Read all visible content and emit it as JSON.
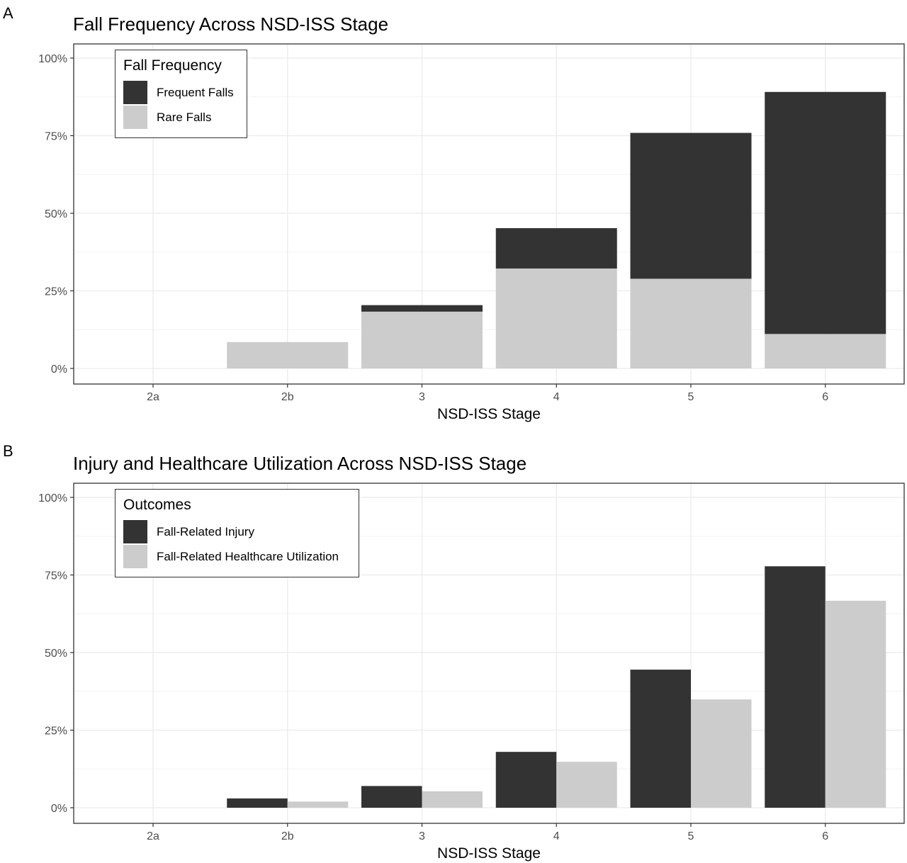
{
  "colors": {
    "dark": "#333333",
    "light": "#cccccc",
    "grid_major": "#ebebeb",
    "grid_minor": "#f3f3f3",
    "frame": "#333333"
  },
  "chart_data": [
    {
      "panel": "A",
      "type": "bar",
      "stacked": true,
      "title": "Fall Frequency Across NSD-ISS Stage",
      "xlabel": "NSD-ISS Stage",
      "ylabel": "",
      "categories": [
        "2a",
        "2b",
        "3",
        "4",
        "5",
        "6"
      ],
      "ylim": [
        0,
        1
      ],
      "yticks": [
        {
          "v": 0,
          "label": "0%"
        },
        {
          "v": 0.25,
          "label": "25%"
        },
        {
          "v": 0.5,
          "label": "50%"
        },
        {
          "v": 0.75,
          "label": "75%"
        },
        {
          "v": 1,
          "label": "100%"
        }
      ],
      "legend": {
        "title": "Fall Frequency",
        "placement": "top-left"
      },
      "series": [
        {
          "name": "Frequent Falls",
          "color": "#333333",
          "values": [
            0,
            0,
            0.021,
            0.13,
            0.47,
            0.78
          ]
        },
        {
          "name": "Rare Falls",
          "color": "#cccccc",
          "values": [
            0,
            0.085,
            0.183,
            0.322,
            0.289,
            0.111
          ]
        }
      ],
      "grid": true
    },
    {
      "panel": "B",
      "type": "bar",
      "stacked": false,
      "title": "Injury and Healthcare Utilization Across NSD-ISS Stage",
      "xlabel": "NSD-ISS Stage",
      "ylabel": "",
      "categories": [
        "2a",
        "2b",
        "3",
        "4",
        "5",
        "6"
      ],
      "ylim": [
        0,
        1
      ],
      "yticks": [
        {
          "v": 0,
          "label": "0%"
        },
        {
          "v": 0.25,
          "label": "25%"
        },
        {
          "v": 0.5,
          "label": "50%"
        },
        {
          "v": 0.75,
          "label": "75%"
        },
        {
          "v": 1,
          "label": "100%"
        }
      ],
      "legend": {
        "title": "Outcomes",
        "placement": "top-left"
      },
      "series": [
        {
          "name": "Fall-Related Injury",
          "color": "#333333",
          "values": [
            0,
            0.03,
            0.07,
            0.18,
            0.445,
            0.778
          ]
        },
        {
          "name": "Fall-Related Healthcare Utilization",
          "color": "#cccccc",
          "values": [
            0,
            0.02,
            0.053,
            0.148,
            0.349,
            0.667
          ]
        }
      ],
      "grid": true
    }
  ]
}
